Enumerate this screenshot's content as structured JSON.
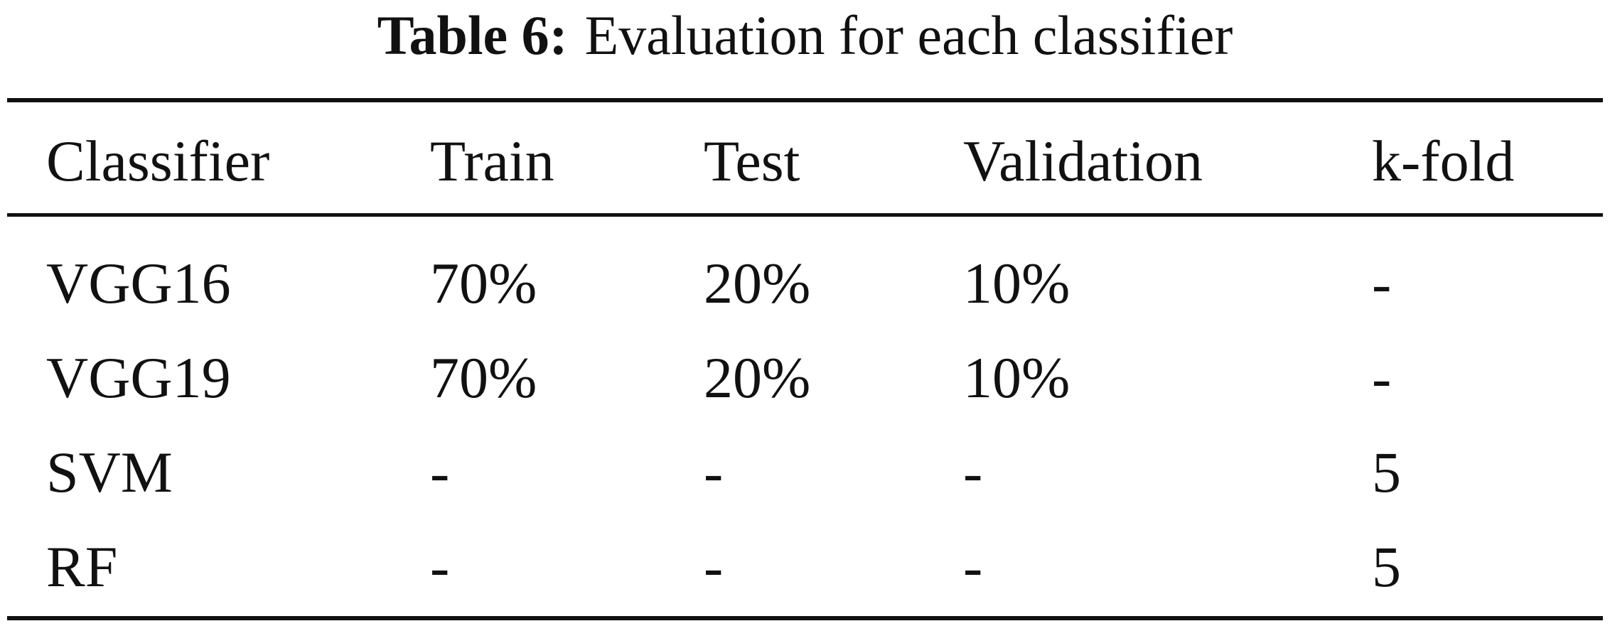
{
  "caption": {
    "label": "Table 6:",
    "text": "Evaluation for each classifier"
  },
  "table": {
    "columns": [
      "Classifier",
      "Train",
      "Test",
      "Validation",
      "k-fold"
    ],
    "rows": [
      [
        "VGG16",
        "70%",
        "20%",
        "10%",
        "-"
      ],
      [
        "VGG19",
        "70%",
        "20%",
        "10%",
        "-"
      ],
      [
        "SVM",
        "-",
        "-",
        "-",
        "5"
      ],
      [
        "RF",
        "-",
        "-",
        "-",
        "5"
      ]
    ]
  }
}
